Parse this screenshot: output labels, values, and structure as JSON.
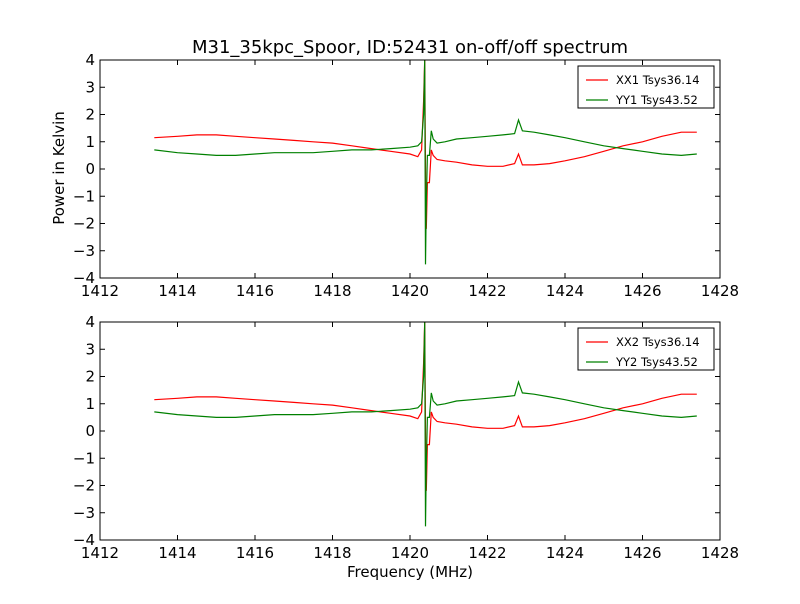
{
  "figure": {
    "title": "M31_35kpc_Spoor, ID:52431 on-off/off spectrum",
    "xlabel": "Frequency (MHz)",
    "ylabel": "Power in Kelvin"
  },
  "chart_data": [
    {
      "type": "line",
      "title": "M31_35kpc_Spoor, ID:52431 on-off/off spectrum",
      "xlabel": "",
      "ylabel": "Power in Kelvin",
      "xlim": [
        1412,
        1428
      ],
      "ylim": [
        -4,
        4
      ],
      "xticks": [
        1412,
        1414,
        1416,
        1418,
        1420,
        1422,
        1424,
        1426,
        1428
      ],
      "yticks": [
        -4,
        -3,
        -2,
        -1,
        0,
        1,
        2,
        3,
        4
      ],
      "xtick_labels": [
        "1412",
        "1414",
        "1416",
        "1418",
        "1420",
        "1422",
        "1424",
        "1426",
        "1428"
      ],
      "ytick_labels": [
        "−4",
        "−3",
        "−2",
        "−1",
        "0",
        "1",
        "2",
        "3",
        "4"
      ],
      "grid": false,
      "legend": "top-right",
      "series": [
        {
          "name": "XX1 Tsys36.14",
          "color": "#ff0000",
          "x": [
            1413.4,
            1414.0,
            1414.5,
            1415.0,
            1415.5,
            1416.0,
            1416.5,
            1417.0,
            1417.5,
            1418.0,
            1418.5,
            1419.0,
            1419.5,
            1420.0,
            1420.2,
            1420.3,
            1420.35,
            1420.38,
            1420.4,
            1420.42,
            1420.45,
            1420.5,
            1420.55,
            1420.6,
            1420.7,
            1420.9,
            1421.2,
            1421.6,
            1422.0,
            1422.4,
            1422.7,
            1422.8,
            1422.9,
            1423.2,
            1423.6,
            1424.0,
            1424.5,
            1425.0,
            1425.5,
            1426.0,
            1426.5,
            1427.0,
            1427.4
          ],
          "y": [
            1.15,
            1.2,
            1.25,
            1.25,
            1.2,
            1.15,
            1.1,
            1.05,
            1.0,
            0.95,
            0.85,
            0.75,
            0.65,
            0.55,
            0.45,
            0.7,
            2.5,
            4.0,
            0.0,
            -2.2,
            -0.5,
            -0.5,
            0.7,
            0.5,
            0.35,
            0.3,
            0.25,
            0.15,
            0.1,
            0.1,
            0.2,
            0.55,
            0.15,
            0.15,
            0.2,
            0.3,
            0.45,
            0.65,
            0.85,
            1.0,
            1.2,
            1.35,
            1.35
          ]
        },
        {
          "name": "YY1 Tsys43.52",
          "color": "#008000",
          "x": [
            1413.4,
            1414.0,
            1414.5,
            1415.0,
            1415.5,
            1416.0,
            1416.5,
            1417.0,
            1417.5,
            1418.0,
            1418.5,
            1419.0,
            1419.5,
            1420.0,
            1420.2,
            1420.3,
            1420.35,
            1420.38,
            1420.4,
            1420.42,
            1420.45,
            1420.5,
            1420.55,
            1420.6,
            1420.7,
            1420.9,
            1421.2,
            1421.6,
            1422.0,
            1422.4,
            1422.7,
            1422.8,
            1422.9,
            1423.2,
            1423.6,
            1424.0,
            1424.5,
            1425.0,
            1425.5,
            1426.0,
            1426.5,
            1427.0,
            1427.4
          ],
          "y": [
            0.7,
            0.6,
            0.55,
            0.5,
            0.5,
            0.55,
            0.6,
            0.6,
            0.6,
            0.65,
            0.7,
            0.7,
            0.75,
            0.8,
            0.85,
            1.0,
            2.0,
            4.0,
            -3.5,
            -1.2,
            0.5,
            0.5,
            1.4,
            1.1,
            0.95,
            1.0,
            1.1,
            1.15,
            1.2,
            1.25,
            1.3,
            1.8,
            1.4,
            1.35,
            1.25,
            1.15,
            1.0,
            0.85,
            0.75,
            0.65,
            0.55,
            0.5,
            0.55
          ]
        }
      ]
    },
    {
      "type": "line",
      "title": "",
      "xlabel": "Frequency (MHz)",
      "ylabel": "",
      "xlim": [
        1412,
        1428
      ],
      "ylim": [
        -4,
        4
      ],
      "xticks": [
        1412,
        1414,
        1416,
        1418,
        1420,
        1422,
        1424,
        1426,
        1428
      ],
      "yticks": [
        -4,
        -3,
        -2,
        -1,
        0,
        1,
        2,
        3,
        4
      ],
      "xtick_labels": [
        "1412",
        "1414",
        "1416",
        "1418",
        "1420",
        "1422",
        "1424",
        "1426",
        "1428"
      ],
      "ytick_labels": [
        "−4",
        "−3",
        "−2",
        "−1",
        "0",
        "1",
        "2",
        "3",
        "4"
      ],
      "grid": false,
      "legend": "top-right",
      "series": [
        {
          "name": "XX2 Tsys36.14",
          "color": "#ff0000",
          "x": [
            1413.4,
            1414.0,
            1414.5,
            1415.0,
            1415.5,
            1416.0,
            1416.5,
            1417.0,
            1417.5,
            1418.0,
            1418.5,
            1419.0,
            1419.5,
            1420.0,
            1420.2,
            1420.3,
            1420.35,
            1420.38,
            1420.4,
            1420.42,
            1420.45,
            1420.5,
            1420.55,
            1420.6,
            1420.7,
            1420.9,
            1421.2,
            1421.6,
            1422.0,
            1422.4,
            1422.7,
            1422.8,
            1422.9,
            1423.2,
            1423.6,
            1424.0,
            1424.5,
            1425.0,
            1425.5,
            1426.0,
            1426.5,
            1427.0,
            1427.4
          ],
          "y": [
            1.15,
            1.2,
            1.25,
            1.25,
            1.2,
            1.15,
            1.1,
            1.05,
            1.0,
            0.95,
            0.85,
            0.75,
            0.65,
            0.55,
            0.45,
            0.7,
            2.5,
            4.0,
            0.0,
            -2.2,
            -0.5,
            -0.5,
            0.7,
            0.5,
            0.35,
            0.3,
            0.25,
            0.15,
            0.1,
            0.1,
            0.2,
            0.55,
            0.15,
            0.15,
            0.2,
            0.3,
            0.45,
            0.65,
            0.85,
            1.0,
            1.2,
            1.35,
            1.35
          ]
        },
        {
          "name": "YY2 Tsys43.52",
          "color": "#008000",
          "x": [
            1413.4,
            1414.0,
            1414.5,
            1415.0,
            1415.5,
            1416.0,
            1416.5,
            1417.0,
            1417.5,
            1418.0,
            1418.5,
            1419.0,
            1419.5,
            1420.0,
            1420.2,
            1420.3,
            1420.35,
            1420.38,
            1420.4,
            1420.42,
            1420.45,
            1420.5,
            1420.55,
            1420.6,
            1420.7,
            1420.9,
            1421.2,
            1421.6,
            1422.0,
            1422.4,
            1422.7,
            1422.8,
            1422.9,
            1423.2,
            1423.6,
            1424.0,
            1424.5,
            1425.0,
            1425.5,
            1426.0,
            1426.5,
            1427.0,
            1427.4
          ],
          "y": [
            0.7,
            0.6,
            0.55,
            0.5,
            0.5,
            0.55,
            0.6,
            0.6,
            0.6,
            0.65,
            0.7,
            0.7,
            0.75,
            0.8,
            0.85,
            1.0,
            2.0,
            4.0,
            -3.5,
            -1.2,
            0.5,
            0.5,
            1.4,
            1.1,
            0.95,
            1.0,
            1.1,
            1.15,
            1.2,
            1.25,
            1.3,
            1.8,
            1.4,
            1.35,
            1.25,
            1.15,
            1.0,
            0.85,
            0.75,
            0.65,
            0.55,
            0.5,
            0.55
          ]
        }
      ]
    }
  ]
}
